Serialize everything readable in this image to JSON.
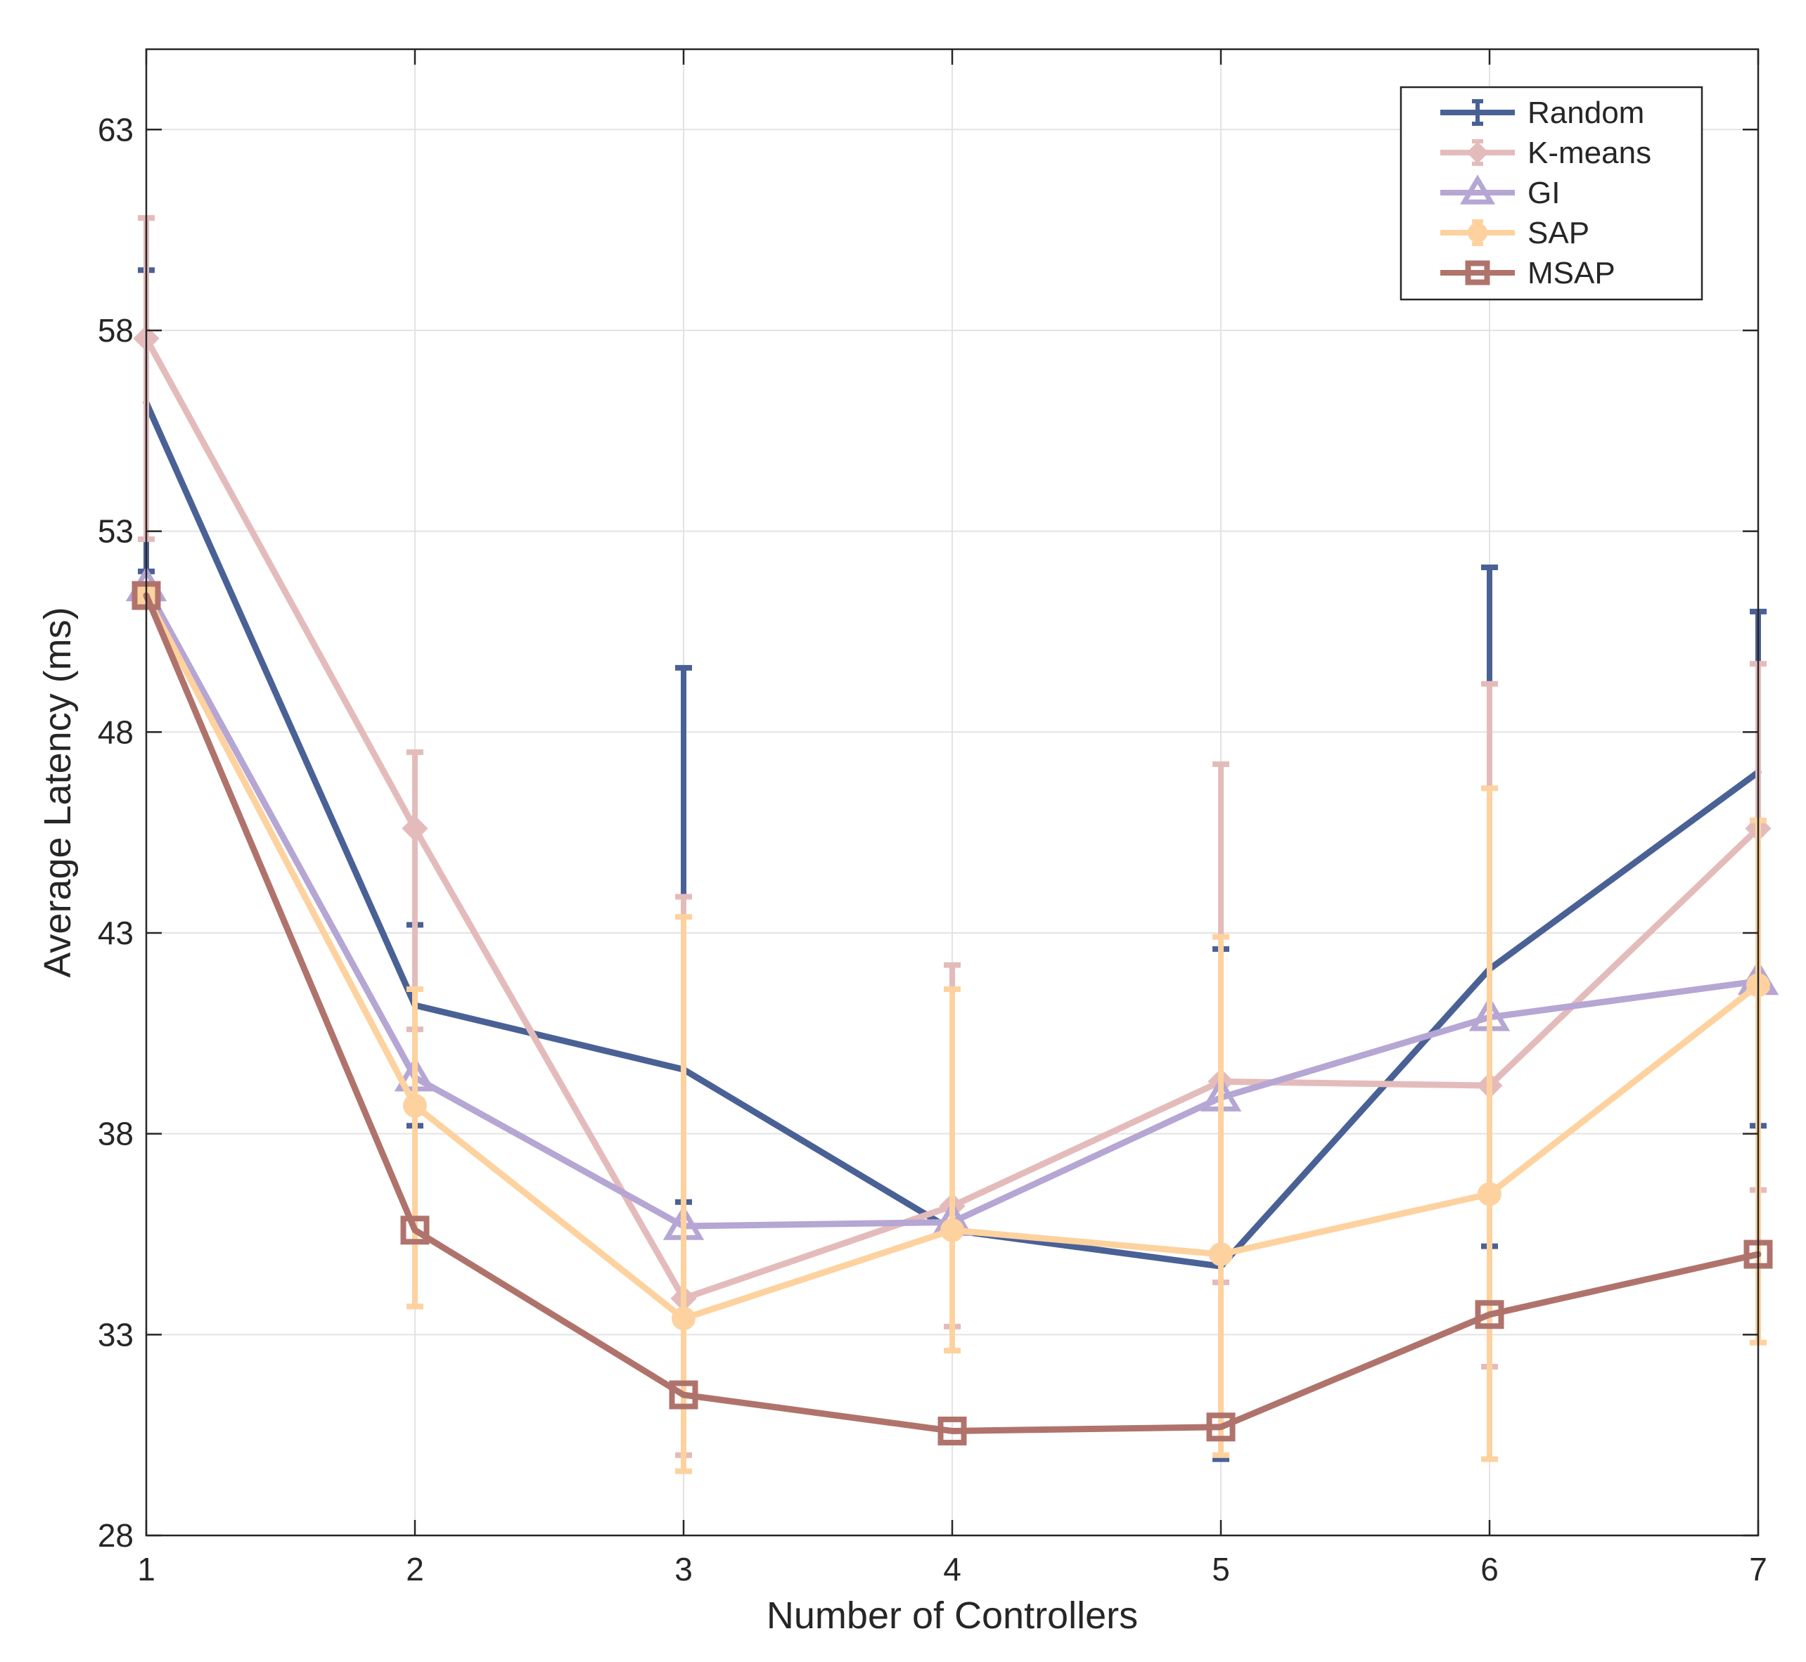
{
  "chart_data": {
    "type": "line",
    "title": "",
    "xlabel": "Number of Controllers",
    "ylabel": "Average Latency (ms)",
    "xlim": [
      1,
      7
    ],
    "ylim": [
      28,
      65
    ],
    "x": [
      1,
      2,
      3,
      4,
      5,
      6,
      7
    ],
    "xticks": [
      "1",
      "2",
      "3",
      "4",
      "5",
      "6",
      "7"
    ],
    "yticks": [
      "28",
      "33",
      "38",
      "43",
      "48",
      "53",
      "58",
      "63"
    ],
    "ytick_values": [
      28,
      33,
      38,
      43,
      48,
      53,
      58,
      63
    ],
    "grid": true,
    "legend_position": "top-right",
    "series": [
      {
        "name": "Random",
        "color": "#4A6196",
        "marker": "none",
        "values": [
          56.2,
          41.2,
          39.6,
          35.6,
          34.7,
          42.1,
          47.0
        ],
        "err_low": [
          52.0,
          38.2,
          36.3,
          35.6,
          29.9,
          35.2,
          38.2
        ],
        "err_high": [
          59.5,
          43.2,
          49.6,
          35.6,
          42.6,
          52.1,
          51.0
        ]
      },
      {
        "name": "K-means",
        "color": "#E4BBBB",
        "marker": "diamond",
        "values": [
          57.8,
          45.6,
          33.9,
          36.2,
          39.3,
          39.2,
          45.6
        ],
        "err_low": [
          52.8,
          40.6,
          30.0,
          33.2,
          34.3,
          32.2,
          36.6
        ],
        "err_high": [
          60.8,
          47.5,
          43.9,
          42.2,
          47.2,
          49.2,
          49.7
        ]
      },
      {
        "name": "GI",
        "color": "#B5A6D3",
        "marker": "triangle",
        "values": [
          51.6,
          39.4,
          35.7,
          35.8,
          38.9,
          40.9,
          41.8
        ],
        "err_low": null,
        "err_high": null
      },
      {
        "name": "SAP",
        "color": "#FDD29F",
        "marker": "circle",
        "values": [
          51.4,
          38.7,
          33.4,
          35.6,
          35.0,
          36.5,
          41.7
        ],
        "err_low": [
          51.4,
          33.7,
          29.6,
          32.6,
          30.0,
          29.9,
          32.8
        ],
        "err_high": [
          51.4,
          41.6,
          43.4,
          41.6,
          42.9,
          46.6,
          45.8
        ]
      },
      {
        "name": "MSAP",
        "color": "#B0736C",
        "marker": "square",
        "values": [
          51.4,
          35.6,
          31.5,
          30.6,
          30.7,
          33.5,
          35.0
        ],
        "err_low": null,
        "err_high": null
      }
    ]
  }
}
